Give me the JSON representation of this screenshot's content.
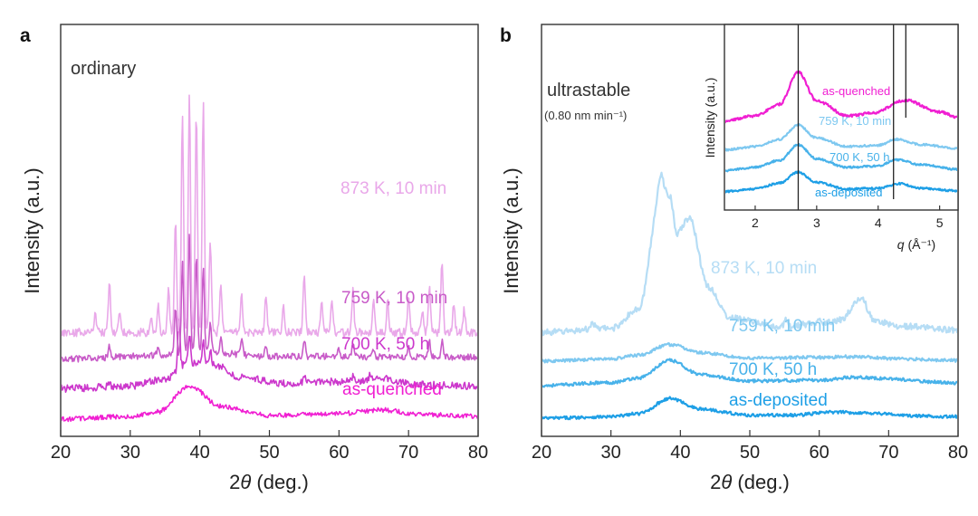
{
  "chart_data": [
    {
      "type": "line",
      "panel_label": "a",
      "annotation": "ordinary",
      "xlabel_prefix": "2",
      "xlabel_symbol": "θ",
      "xlabel_suffix": " (deg.)",
      "ylabel": "Intensity (a.u.)",
      "xlim": [
        20,
        80
      ],
      "x_ticks": [
        "20",
        "30",
        "40",
        "50",
        "60",
        "70",
        "80"
      ],
      "series": [
        {
          "name": "as-quenched",
          "color": "#f01fd2",
          "offset": 0.0,
          "noise": 0.25,
          "baseline": [
            [
              20,
              0.0
            ],
            [
              30,
              0.3
            ],
            [
              34,
              0.8
            ],
            [
              38.5,
              3.6
            ],
            [
              43,
              1.4
            ],
            [
              50,
              0.4
            ],
            [
              60,
              0.6
            ],
            [
              66,
              1.0
            ],
            [
              72,
              0.5
            ],
            [
              80,
              0.3
            ]
          ],
          "peaks": []
        },
        {
          "name": "700 K, 50 h",
          "color": "#cc38cc",
          "offset": 3.3,
          "noise": 0.4,
          "baseline": [
            [
              20,
              0.0
            ],
            [
              30,
              0.3
            ],
            [
              35,
              1.0
            ],
            [
              38.5,
              2.8
            ],
            [
              42,
              2.6
            ],
            [
              46,
              1.2
            ],
            [
              52,
              0.6
            ],
            [
              62,
              0.8
            ],
            [
              66,
              1.1
            ],
            [
              72,
              0.4
            ],
            [
              80,
              0.3
            ]
          ],
          "peaks": [
            [
              37.0,
              5.5
            ],
            [
              38.5,
              3.0
            ],
            [
              40.5,
              2.5
            ],
            [
              41.5,
              1.5
            ],
            [
              55,
              0.8
            ],
            [
              62,
              0.6
            ],
            [
              64.5,
              0.7
            ],
            [
              27,
              0.5
            ]
          ]
        },
        {
          "name": "759 K, 10 min",
          "color": "#c85bc8",
          "offset": 6.5,
          "noise": 0.35,
          "baseline": [
            [
              20,
              0.0
            ],
            [
              35,
              0.4
            ],
            [
              40,
              0.8
            ],
            [
              50,
              0.3
            ],
            [
              80,
              0.2
            ]
          ],
          "peaks": [
            [
              27,
              1.3
            ],
            [
              34,
              1.0
            ],
            [
              36.5,
              5.0
            ],
            [
              37.5,
              10.0
            ],
            [
              38.5,
              13.0
            ],
            [
              39.5,
              10.5
            ],
            [
              40.5,
              9.0
            ],
            [
              41.5,
              3.0
            ],
            [
              43,
              1.5
            ],
            [
              46,
              1.5
            ],
            [
              49.5,
              1.2
            ],
            [
              55,
              2.0
            ],
            [
              60,
              1.0
            ],
            [
              62,
              1.5
            ],
            [
              65,
              1.0
            ],
            [
              70,
              1.0
            ],
            [
              73,
              1.8
            ],
            [
              74.8,
              1.8
            ]
          ]
        },
        {
          "name": "873 K, 10 min",
          "color": "#e9a8e9",
          "offset": 9.4,
          "noise": 0.45,
          "baseline": [
            [
              20,
              0.0
            ],
            [
              80,
              0.0
            ]
          ],
          "peaks": [
            [
              25,
              2.0
            ],
            [
              27,
              5.5
            ],
            [
              28.5,
              2.5
            ],
            [
              33,
              1.5
            ],
            [
              34,
              3.0
            ],
            [
              35.5,
              4.5
            ],
            [
              36.5,
              12.0
            ],
            [
              37.5,
              24.0
            ],
            [
              38.5,
              26.0
            ],
            [
              39.5,
              24.0
            ],
            [
              40.5,
              25.0
            ],
            [
              41.5,
              10.0
            ],
            [
              43,
              5.5
            ],
            [
              46,
              4.0
            ],
            [
              49.5,
              4.0
            ],
            [
              52,
              3.0
            ],
            [
              55,
              6.0
            ],
            [
              57.5,
              3.5
            ],
            [
              59,
              3.5
            ],
            [
              62,
              4.5
            ],
            [
              65,
              3.5
            ],
            [
              67,
              3.5
            ],
            [
              70,
              4.0
            ],
            [
              72,
              2.5
            ],
            [
              73,
              5.0
            ],
            [
              74.8,
              7.5
            ],
            [
              76.5,
              3.0
            ],
            [
              78,
              2.5
            ]
          ]
        }
      ]
    },
    {
      "type": "line",
      "panel_label": "b",
      "annotation": "ultrastable",
      "annotation_sub": "(0.80 nm min⁻¹)",
      "xlabel_prefix": "2",
      "xlabel_symbol": "θ",
      "xlabel_suffix": " (deg.)",
      "ylabel": "Intensity (a.u.)",
      "xlim": [
        20,
        80
      ],
      "x_ticks": [
        "20",
        "30",
        "40",
        "50",
        "60",
        "70",
        "80"
      ],
      "series": [
        {
          "name": "as-deposited",
          "color": "#1e9fe6",
          "offset": 0.0,
          "noise": 0.2,
          "baseline": [
            [
              20,
              0.0
            ],
            [
              30,
              0.2
            ],
            [
              34,
              0.6
            ],
            [
              38.5,
              2.6
            ],
            [
              43,
              1.2
            ],
            [
              50,
              0.4
            ],
            [
              56,
              0.4
            ],
            [
              62,
              0.8
            ],
            [
              67,
              0.7
            ],
            [
              74,
              0.3
            ],
            [
              80,
              0.2
            ]
          ],
          "peaks": []
        },
        {
          "name": "700 K, 50 h",
          "color": "#48b2ea",
          "offset": 4.3,
          "noise": 0.2,
          "baseline": [
            [
              20,
              0.0
            ],
            [
              30,
              0.4
            ],
            [
              34,
              1.0
            ],
            [
              38.5,
              3.3
            ],
            [
              43,
              1.4
            ],
            [
              50,
              0.6
            ],
            [
              60,
              0.7
            ],
            [
              65,
              1.1
            ],
            [
              70,
              0.9
            ],
            [
              76,
              0.5
            ],
            [
              80,
              0.3
            ]
          ],
          "peaks": []
        },
        {
          "name": "759 K, 10 min",
          "color": "#7ec8f0",
          "offset": 7.5,
          "noise": 0.2,
          "baseline": [
            [
              20,
              0.0
            ],
            [
              30,
              0.3
            ],
            [
              34,
              0.8
            ],
            [
              38.5,
              2.2
            ],
            [
              43,
              1.1
            ],
            [
              50,
              0.4
            ],
            [
              60,
              0.5
            ],
            [
              65,
              0.6
            ],
            [
              72,
              0.3
            ],
            [
              80,
              0.1
            ]
          ],
          "peaks": []
        },
        {
          "name": "873 K, 10 min",
          "color": "#b6ddf5",
          "offset": 11.3,
          "noise": 0.4,
          "baseline": [
            [
              20,
              0.0
            ],
            [
              30,
              0.5
            ],
            [
              34,
              3.0
            ],
            [
              37.3,
              19.0
            ],
            [
              38.5,
              18.0
            ],
            [
              39.5,
              13.0
            ],
            [
              41.3,
              15.0
            ],
            [
              44,
              6.0
            ],
            [
              47,
              2.0
            ],
            [
              50,
              1.5
            ],
            [
              54,
              0.6
            ],
            [
              60,
              1.2
            ],
            [
              63,
              1.6
            ],
            [
              66,
              4.5
            ],
            [
              68,
              1.4
            ],
            [
              72,
              0.8
            ],
            [
              80,
              0.3
            ]
          ],
          "peaks": [
            [
              37.2,
              2.0
            ],
            [
              27.3,
              0.8
            ],
            [
              55.2,
              1.0
            ],
            [
              60,
              0.6
            ]
          ]
        }
      ]
    },
    {
      "type": "line",
      "panel_label": "b-inset",
      "xlabel_symbol": "q",
      "xlabel_suffix": " (Å⁻¹)",
      "ylabel": "Intensity (a.u.)",
      "xlim": [
        1.5,
        5.3
      ],
      "x_ticks": [
        "2",
        "3",
        "4",
        "5"
      ],
      "vlines": [
        2.7,
        4.25,
        4.45
      ],
      "series": [
        {
          "name": "as-deposited",
          "color": "#1e9fe6",
          "offset": 0.0,
          "noise": 0.15,
          "baseline": [
            [
              1.5,
              0.2
            ],
            [
              2.0,
              0.6
            ],
            [
              2.4,
              1.5
            ],
            [
              2.7,
              3.2
            ],
            [
              3.0,
              1.6
            ],
            [
              3.5,
              0.6
            ],
            [
              4.0,
              0.7
            ],
            [
              4.35,
              1.4
            ],
            [
              4.7,
              0.7
            ],
            [
              5.3,
              0.3
            ]
          ],
          "peaks": []
        },
        {
          "name": "700 K, 50 h",
          "color": "#48b2ea",
          "offset": 3.2,
          "noise": 0.15,
          "baseline": [
            [
              1.5,
              0.2
            ],
            [
              2.0,
              0.7
            ],
            [
              2.4,
              1.8
            ],
            [
              2.7,
              4.2
            ],
            [
              3.0,
              2.0
            ],
            [
              3.5,
              0.7
            ],
            [
              4.0,
              0.9
            ],
            [
              4.3,
              1.9
            ],
            [
              4.7,
              1.1
            ],
            [
              5.3,
              0.4
            ]
          ],
          "peaks": []
        },
        {
          "name": "759 K, 10 min",
          "color": "#7ec8f0",
          "offset": 6.4,
          "noise": 0.15,
          "baseline": [
            [
              1.5,
              0.2
            ],
            [
              2.0,
              0.7
            ],
            [
              2.4,
              1.8
            ],
            [
              2.7,
              4.0
            ],
            [
              3.0,
              2.0
            ],
            [
              3.5,
              0.7
            ],
            [
              4.0,
              0.9
            ],
            [
              4.3,
              1.8
            ],
            [
              4.7,
              1.0
            ],
            [
              5.3,
              0.4
            ]
          ],
          "peaks": []
        },
        {
          "name": "as-quenched",
          "color": "#f01fd2",
          "offset": 10.6,
          "noise": 0.2,
          "baseline": [
            [
              1.5,
              0.4
            ],
            [
              2.0,
              1.2
            ],
            [
              2.4,
              3.0
            ],
            [
              2.7,
              8.0
            ],
            [
              3.0,
              3.5
            ],
            [
              3.5,
              1.2
            ],
            [
              3.9,
              1.6
            ],
            [
              4.45,
              3.6
            ],
            [
              5.0,
              1.8
            ],
            [
              5.3,
              1.0
            ]
          ],
          "peaks": []
        }
      ]
    }
  ]
}
